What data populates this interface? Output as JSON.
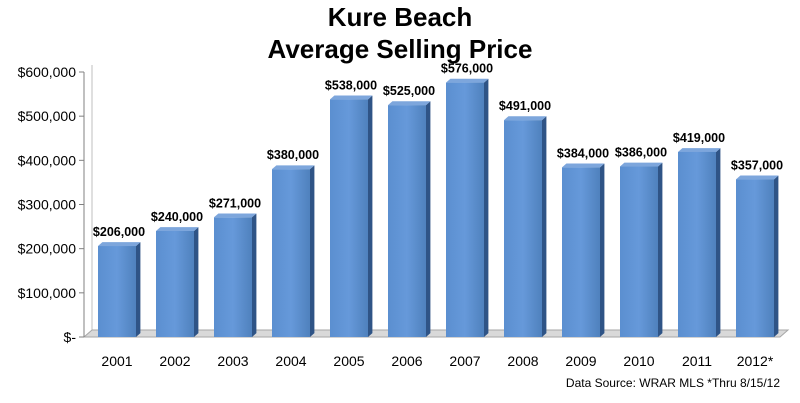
{
  "chart_data": {
    "type": "bar",
    "title": "Kure Beach",
    "subtitle": "Average Selling Price",
    "categories": [
      "2001",
      "2002",
      "2003",
      "2004",
      "2005",
      "2006",
      "2007",
      "2008",
      "2009",
      "2010",
      "2011",
      "2012*"
    ],
    "values": [
      206000,
      240000,
      271000,
      380000,
      538000,
      525000,
      576000,
      491000,
      384000,
      386000,
      419000,
      357000
    ],
    "data_labels": [
      "$206,000",
      "$240,000",
      "$271,000",
      "$380,000",
      "$538,000",
      "$525,000",
      "$576,000",
      "$491,000",
      "$384,000",
      "$386,000",
      "$419,000",
      "$357,000"
    ],
    "ylim": [
      0,
      600000
    ],
    "yticks": [
      0,
      100000,
      200000,
      300000,
      400000,
      500000,
      600000
    ],
    "ytick_labels": [
      "$-",
      "$100,000",
      "$200,000",
      "$300,000",
      "$400,000",
      "$500,000",
      "$600,000"
    ],
    "xlabel": "",
    "ylabel": "",
    "grid": false,
    "legend": "none",
    "bar_color": "#4f81bd",
    "note": "Data Source: WRAR MLS  *Thru 8/15/12"
  }
}
